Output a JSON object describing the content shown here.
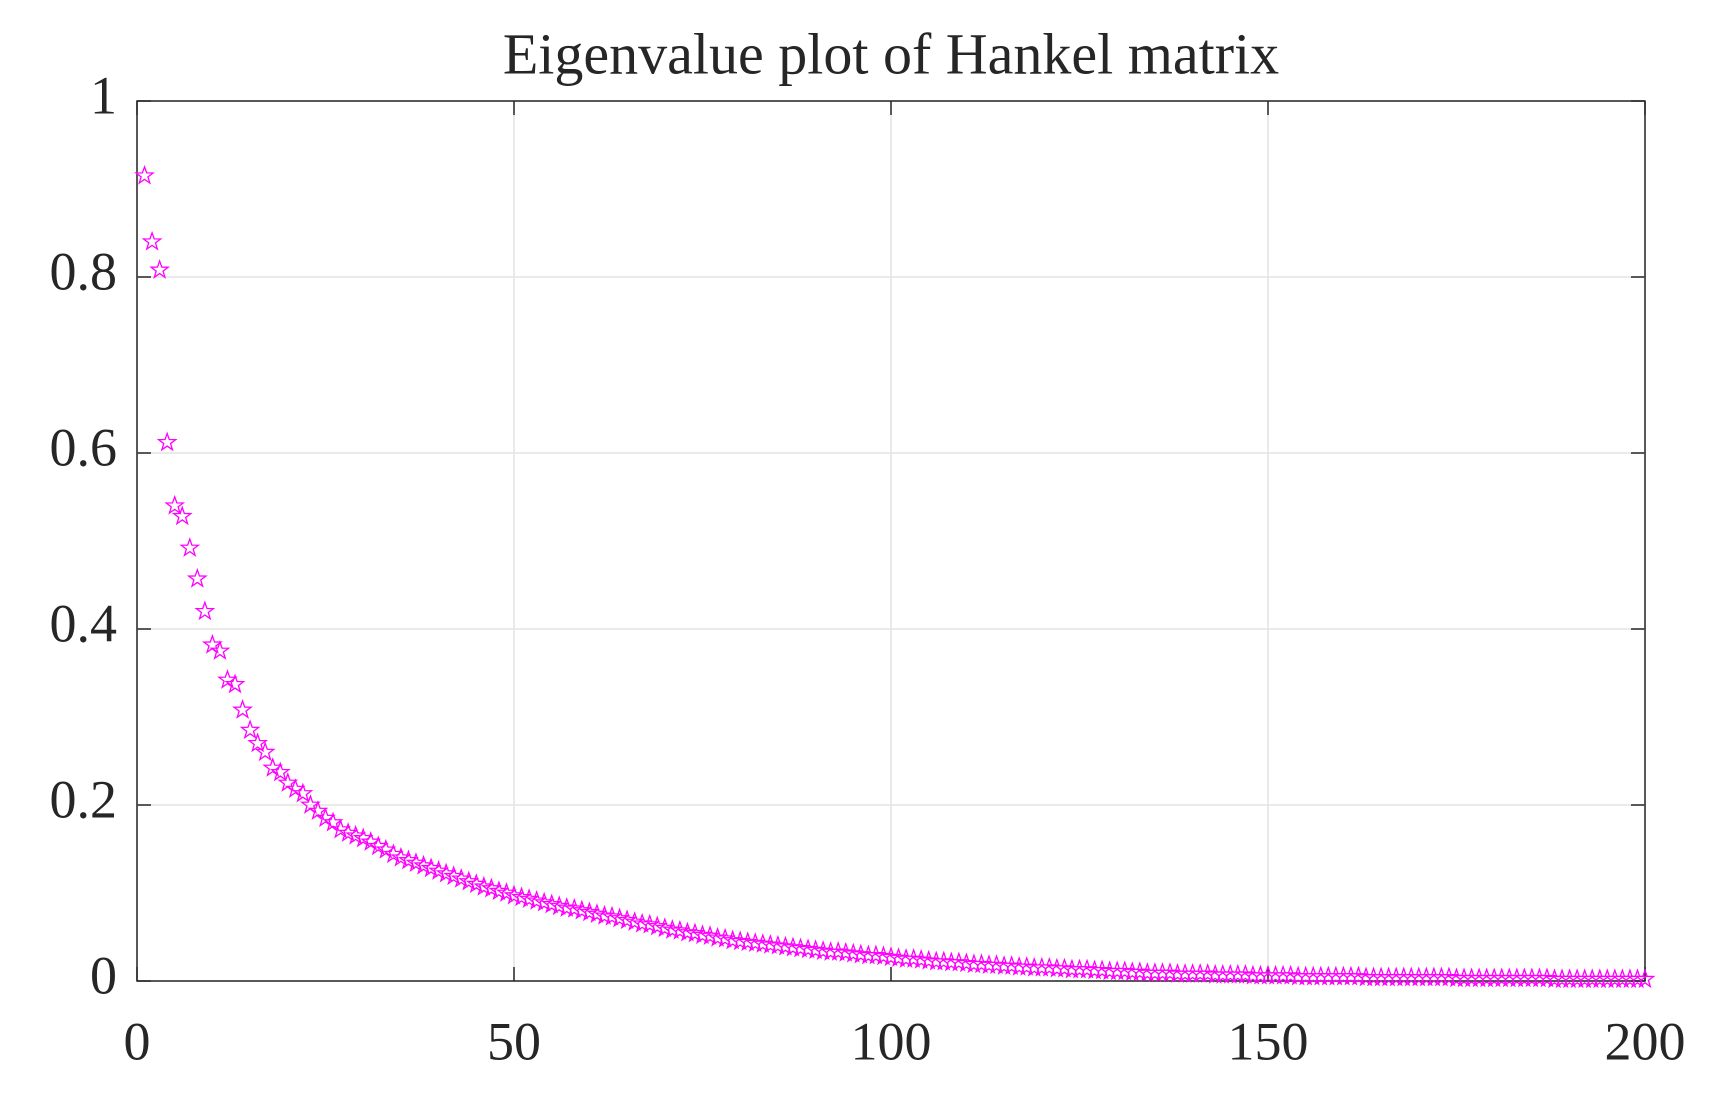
{
  "chart_data": {
    "type": "scatter",
    "title": "Eigenvalue plot of Hankel matrix",
    "x": [
      1,
      2,
      3,
      4,
      5,
      6,
      7,
      8,
      9,
      10,
      11,
      12,
      13,
      14,
      15,
      16,
      17,
      18,
      19,
      20,
      21,
      22,
      23,
      24,
      25,
      26,
      27,
      28,
      29,
      30,
      31,
      32,
      33,
      34,
      35,
      36,
      37,
      38,
      39,
      40,
      41,
      42,
      43,
      44,
      45,
      46,
      47,
      48,
      49,
      50,
      51,
      52,
      53,
      54,
      55,
      56,
      57,
      58,
      59,
      60,
      61,
      62,
      63,
      64,
      65,
      66,
      67,
      68,
      69,
      70,
      71,
      72,
      73,
      74,
      75,
      76,
      77,
      78,
      79,
      80,
      81,
      82,
      83,
      84,
      85,
      86,
      87,
      88,
      89,
      90,
      91,
      92,
      93,
      94,
      95,
      96,
      97,
      98,
      99,
      100,
      101,
      102,
      103,
      104,
      105,
      106,
      107,
      108,
      109,
      110,
      111,
      112,
      113,
      114,
      115,
      116,
      117,
      118,
      119,
      120,
      121,
      122,
      123,
      124,
      125,
      126,
      127,
      128,
      129,
      130,
      131,
      132,
      133,
      134,
      135,
      136,
      137,
      138,
      139,
      140,
      141,
      142,
      143,
      144,
      145,
      146,
      147,
      148,
      149,
      150,
      151,
      152,
      153,
      154,
      155,
      156,
      157,
      158,
      159,
      160,
      161,
      162,
      163,
      164,
      165,
      166,
      167,
      168,
      169,
      170,
      171,
      172,
      173,
      174,
      175,
      176,
      177,
      178,
      179,
      180,
      181,
      182,
      183,
      184,
      185,
      186,
      187,
      188,
      189,
      190,
      191,
      192,
      193,
      194,
      195,
      196,
      197,
      198,
      199,
      200
    ],
    "values": [
      0.915,
      0.84,
      0.808,
      0.612,
      0.54,
      0.528,
      0.492,
      0.457,
      0.42,
      0.382,
      0.375,
      0.342,
      0.337,
      0.308,
      0.285,
      0.27,
      0.26,
      0.242,
      0.237,
      0.225,
      0.218,
      0.213,
      0.2,
      0.193,
      0.185,
      0.18,
      0.172,
      0.168,
      0.165,
      0.162,
      0.158,
      0.153,
      0.149,
      0.144,
      0.14,
      0.137,
      0.134,
      0.131,
      0.128,
      0.125,
      0.122,
      0.119,
      0.116,
      0.113,
      0.11,
      0.107,
      0.105,
      0.102,
      0.1,
      0.097,
      0.095,
      0.093,
      0.091,
      0.089,
      0.087,
      0.085,
      0.083,
      0.082,
      0.08,
      0.078,
      0.076,
      0.074,
      0.073,
      0.071,
      0.069,
      0.067,
      0.065,
      0.064,
      0.062,
      0.06,
      0.058,
      0.057,
      0.055,
      0.054,
      0.052,
      0.051,
      0.049,
      0.048,
      0.046,
      0.045,
      0.044,
      0.043,
      0.042,
      0.041,
      0.04,
      0.039,
      0.038,
      0.037,
      0.036,
      0.035,
      0.034,
      0.033,
      0.033,
      0.032,
      0.031,
      0.03,
      0.029,
      0.029,
      0.028,
      0.027,
      0.026,
      0.025,
      0.025,
      0.024,
      0.023,
      0.022,
      0.022,
      0.021,
      0.021,
      0.02,
      0.019,
      0.019,
      0.018,
      0.018,
      0.017,
      0.017,
      0.016,
      0.016,
      0.015,
      0.015,
      0.015,
      0.014,
      0.014,
      0.013,
      0.013,
      0.013,
      0.012,
      0.012,
      0.011,
      0.011,
      0.011,
      0.01,
      0.01,
      0.009,
      0.009,
      0.009,
      0.009,
      0.008,
      0.008,
      0.008,
      0.008,
      0.008,
      0.007,
      0.007,
      0.007,
      0.007,
      0.007,
      0.006,
      0.006,
      0.006,
      0.006,
      0.006,
      0.006,
      0.005,
      0.005,
      0.005,
      0.005,
      0.005,
      0.005,
      0.005,
      0.005,
      0.005,
      0.004,
      0.004,
      0.004,
      0.004,
      0.004,
      0.004,
      0.004,
      0.004,
      0.004,
      0.004,
      0.004,
      0.004,
      0.003,
      0.003,
      0.003,
      0.003,
      0.003,
      0.003,
      0.003,
      0.003,
      0.003,
      0.003,
      0.003,
      0.003,
      0.003,
      0.002,
      0.002,
      0.002,
      0.002,
      0.002,
      0.002,
      0.002,
      0.002,
      0.002,
      0.002,
      0.002,
      0.002,
      0.002
    ],
    "color": "#ff00ff",
    "marker": "star",
    "xlim": [
      0,
      200
    ],
    "xticks": [
      0,
      50,
      100,
      150,
      200
    ],
    "ylim": [
      0,
      1
    ],
    "yticks": [
      0,
      0.2,
      0.4,
      0.6,
      0.8,
      1
    ],
    "grid": true
  }
}
